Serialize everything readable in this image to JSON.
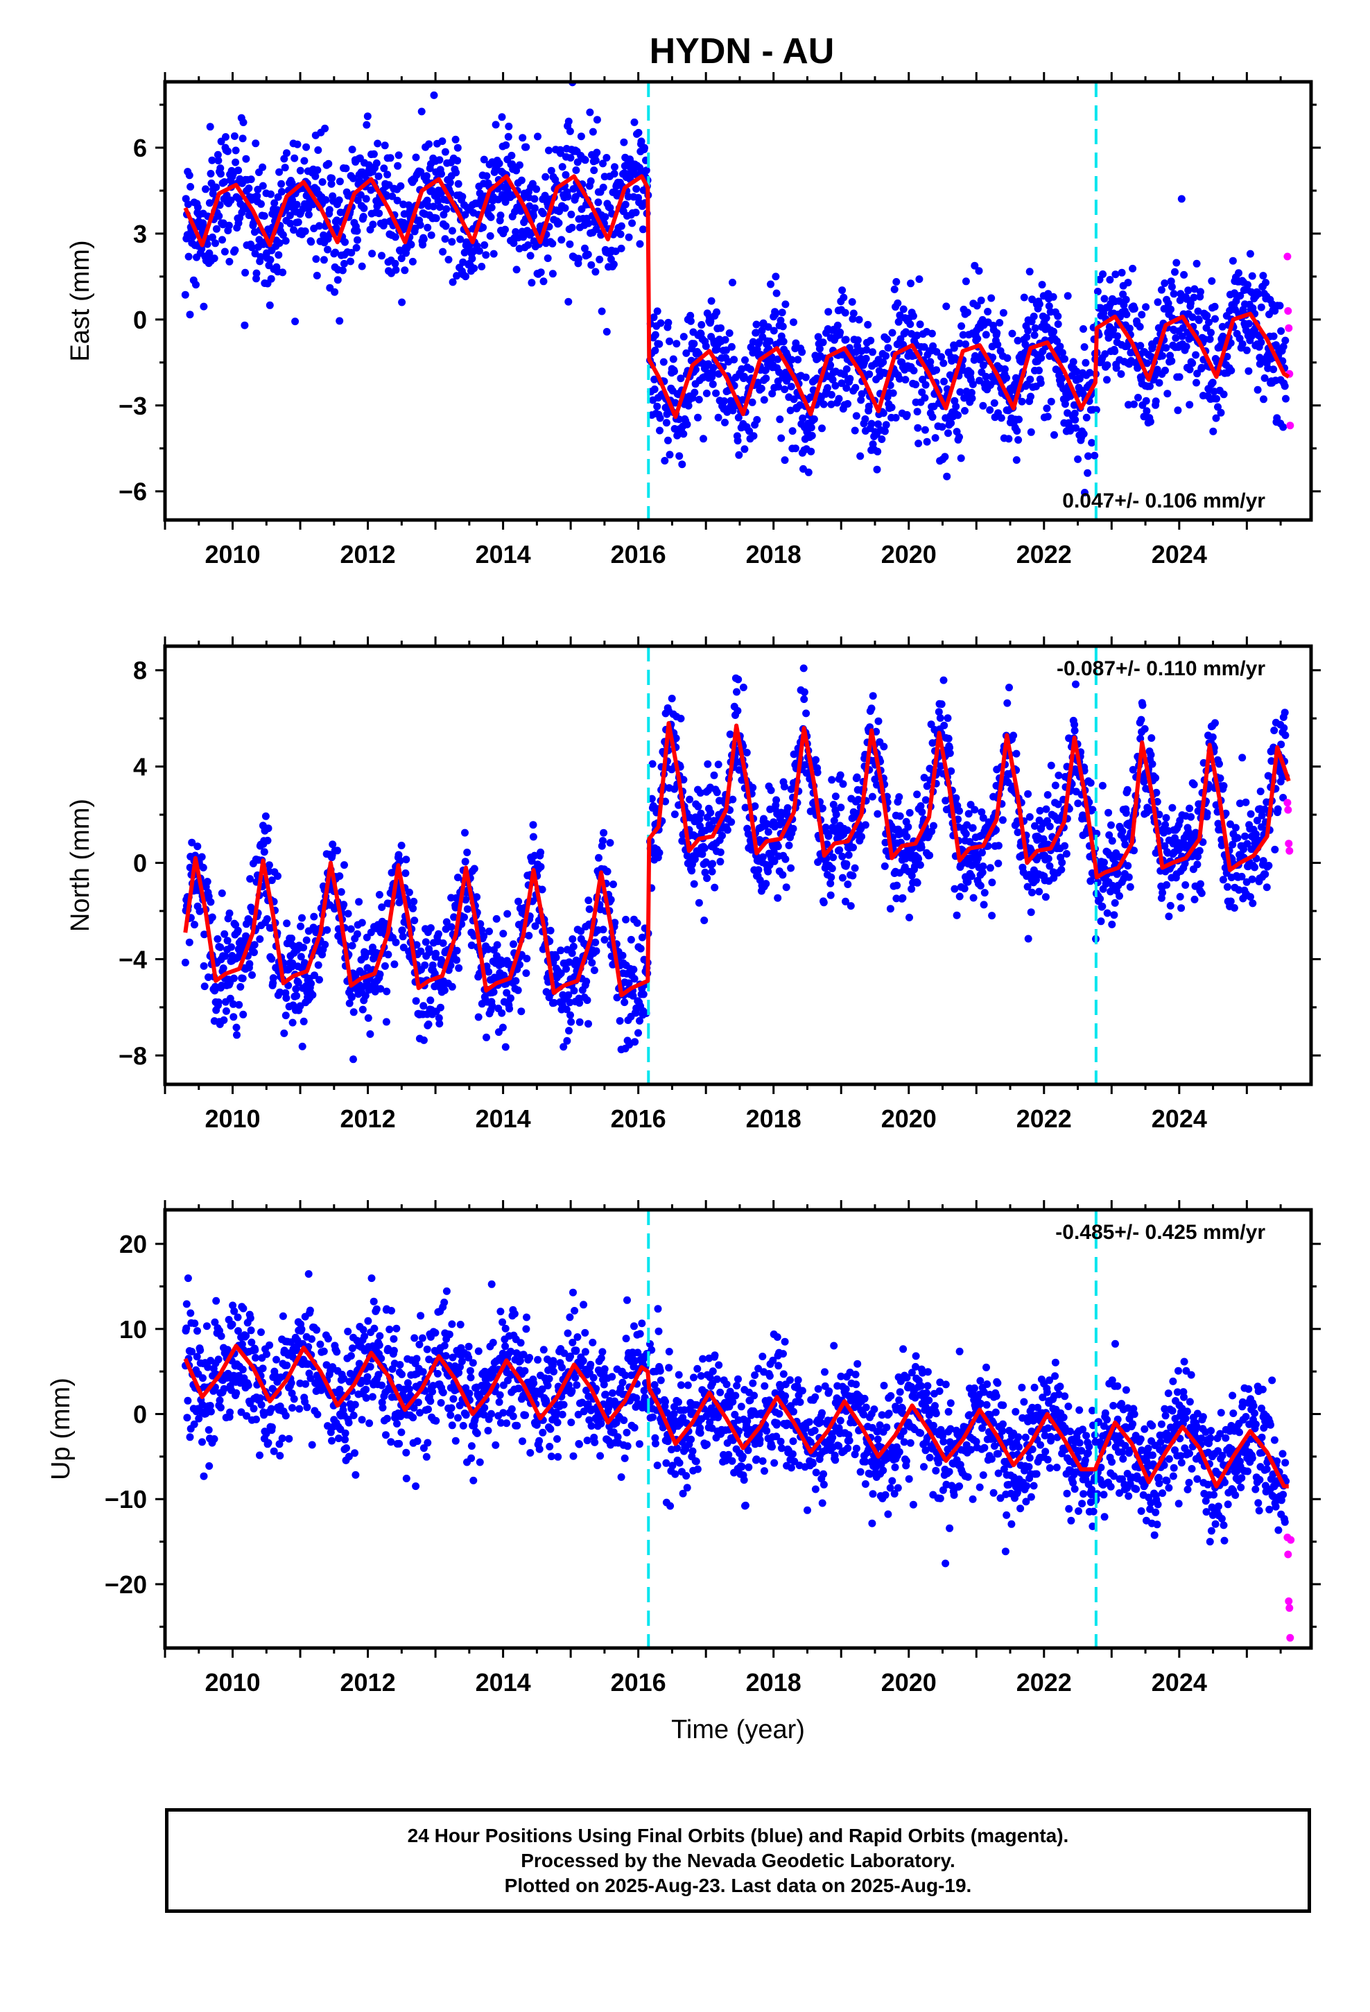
{
  "title": "HYDN - AU",
  "footer": {
    "line1": "24 Hour Positions Using Final Orbits (blue) and Rapid Orbits (magenta).",
    "line2": "Processed by the Nevada Geodetic Laboratory.",
    "line3": "Plotted on 2025-Aug-23. Last data on 2025-Aug-19."
  },
  "colors": {
    "final_orbits": "#0000ff",
    "rapid_orbits": "#ff00ff",
    "model_fit": "#ff0000",
    "equipment_change": "#00e5ee"
  },
  "chart_data": [
    {
      "type": "scatter",
      "name": "east",
      "title": "",
      "ylabel": "East (mm)",
      "xlabel": "",
      "xlim": [
        2009.0,
        2025.95
      ],
      "ylim": [
        -7,
        8.3
      ],
      "xticks": [
        2010,
        2012,
        2014,
        2016,
        2018,
        2020,
        2022,
        2024
      ],
      "yticks": [
        -6,
        -3,
        0,
        3,
        6
      ],
      "rate_text": "0.047+/- 0.106 mm/yr",
      "rate_position": "bottom-right",
      "offsets": [
        2016.15,
        2022.77
      ],
      "model_fit": {
        "x": [
          2009.3,
          2009.55,
          2009.8,
          2010.05,
          2010.3,
          2010.55,
          2010.8,
          2011.05,
          2011.3,
          2011.55,
          2011.8,
          2012.05,
          2012.3,
          2012.55,
          2012.8,
          2013.05,
          2013.3,
          2013.55,
          2013.8,
          2014.05,
          2014.3,
          2014.55,
          2014.8,
          2015.05,
          2015.3,
          2015.55,
          2015.8,
          2016.05,
          2016.14,
          2016.16,
          2016.3,
          2016.55,
          2016.8,
          2017.05,
          2017.3,
          2017.55,
          2017.8,
          2018.05,
          2018.3,
          2018.55,
          2018.8,
          2019.05,
          2019.3,
          2019.55,
          2019.8,
          2020.05,
          2020.3,
          2020.55,
          2020.8,
          2021.05,
          2021.3,
          2021.55,
          2021.8,
          2022.05,
          2022.3,
          2022.55,
          2022.76,
          2022.78,
          2023.05,
          2023.3,
          2023.55,
          2023.8,
          2024.05,
          2024.3,
          2024.55,
          2024.8,
          2025.05,
          2025.3,
          2025.55,
          2025.62
        ],
        "y": [
          3.9,
          2.6,
          4.4,
          4.7,
          3.8,
          2.6,
          4.3,
          4.8,
          3.9,
          2.7,
          4.4,
          4.9,
          3.9,
          2.7,
          4.5,
          4.9,
          3.9,
          2.7,
          4.5,
          5.0,
          4.0,
          2.7,
          4.6,
          5.0,
          4.0,
          2.8,
          4.6,
          5.0,
          4.6,
          -1.4,
          -2.0,
          -3.4,
          -1.6,
          -1.1,
          -2.0,
          -3.3,
          -1.4,
          -1.0,
          -2.0,
          -3.3,
          -1.3,
          -1.0,
          -1.9,
          -3.2,
          -1.2,
          -0.9,
          -1.9,
          -3.1,
          -1.1,
          -0.9,
          -1.9,
          -3.1,
          -1.0,
          -0.8,
          -1.8,
          -3.1,
          -2.2,
          -0.3,
          0.1,
          -0.8,
          -2.1,
          -0.2,
          0.1,
          -0.8,
          -2.0,
          0.0,
          0.2,
          -0.7,
          -1.9,
          -2.0
        ]
      },
      "rapid": {
        "x": [
          2025.6,
          2025.61,
          2025.62,
          2025.63,
          2025.64
        ],
        "y": [
          2.2,
          0.3,
          -0.3,
          -1.9,
          -3.7
        ]
      }
    },
    {
      "type": "scatter",
      "name": "north",
      "title": "",
      "ylabel": "North (mm)",
      "xlabel": "",
      "xlim": [
        2009.0,
        2025.95
      ],
      "ylim": [
        -9.2,
        9.0
      ],
      "xticks": [
        2010,
        2012,
        2014,
        2016,
        2018,
        2020,
        2022,
        2024
      ],
      "yticks": [
        -8,
        -4,
        0,
        4,
        8
      ],
      "rate_text": "-0.087+/- 0.110 mm/yr",
      "rate_position": "top-right",
      "offsets": [
        2016.15,
        2022.77
      ],
      "model_fit": {
        "x": [
          2009.3,
          2009.45,
          2009.6,
          2009.75,
          2009.9,
          2010.1,
          2010.3,
          2010.45,
          2010.6,
          2010.75,
          2010.9,
          2011.1,
          2011.3,
          2011.45,
          2011.6,
          2011.75,
          2011.9,
          2012.1,
          2012.3,
          2012.45,
          2012.6,
          2012.75,
          2012.9,
          2013.1,
          2013.3,
          2013.45,
          2013.6,
          2013.75,
          2013.9,
          2014.1,
          2014.3,
          2014.45,
          2014.6,
          2014.75,
          2014.9,
          2015.1,
          2015.3,
          2015.45,
          2015.6,
          2015.75,
          2015.9,
          2016.14,
          2016.16,
          2016.3,
          2016.45,
          2016.6,
          2016.75,
          2016.9,
          2017.1,
          2017.3,
          2017.45,
          2017.6,
          2017.75,
          2017.9,
          2018.1,
          2018.3,
          2018.45,
          2018.6,
          2018.75,
          2018.9,
          2019.1,
          2019.3,
          2019.45,
          2019.6,
          2019.75,
          2019.9,
          2020.1,
          2020.3,
          2020.45,
          2020.6,
          2020.75,
          2020.9,
          2021.1,
          2021.3,
          2021.45,
          2021.6,
          2021.75,
          2021.9,
          2022.1,
          2022.3,
          2022.45,
          2022.6,
          2022.76,
          2022.78,
          2022.9,
          2023.1,
          2023.3,
          2023.45,
          2023.6,
          2023.75,
          2023.9,
          2024.1,
          2024.3,
          2024.45,
          2024.6,
          2024.75,
          2024.9,
          2025.1,
          2025.3,
          2025.45,
          2025.62
        ],
        "y": [
          -2.9,
          0.2,
          -2.0,
          -4.9,
          -4.6,
          -4.4,
          -2.9,
          0.1,
          -2.2,
          -5.0,
          -4.7,
          -4.5,
          -2.9,
          0.0,
          -2.3,
          -5.1,
          -4.8,
          -4.6,
          -2.9,
          -0.1,
          -2.4,
          -5.2,
          -4.9,
          -4.7,
          -3.0,
          -0.2,
          -2.5,
          -5.3,
          -5.0,
          -4.8,
          -3.0,
          -0.3,
          -2.6,
          -5.4,
          -5.1,
          -4.9,
          -3.1,
          -0.4,
          -2.7,
          -5.5,
          -5.2,
          -4.9,
          1.0,
          1.5,
          5.8,
          3.5,
          0.5,
          1.0,
          1.1,
          2.2,
          5.7,
          3.4,
          0.4,
          0.9,
          1.0,
          2.1,
          5.6,
          3.3,
          0.3,
          0.8,
          0.9,
          2.0,
          5.5,
          3.2,
          0.2,
          0.7,
          0.8,
          1.9,
          5.4,
          3.1,
          0.1,
          0.6,
          0.7,
          1.8,
          5.3,
          3.0,
          0.0,
          0.5,
          0.6,
          1.7,
          5.2,
          2.9,
          -0.1,
          -0.6,
          -0.4,
          -0.2,
          0.8,
          5.0,
          2.8,
          -0.2,
          0.0,
          0.2,
          1.0,
          4.9,
          2.6,
          -0.3,
          0.0,
          0.3,
          1.1,
          4.8,
          3.4
        ]
      },
      "rapid": {
        "x": [
          2025.6,
          2025.61,
          2025.62,
          2025.63
        ],
        "y": [
          2.5,
          2.2,
          0.8,
          0.5
        ]
      }
    },
    {
      "type": "scatter",
      "name": "up",
      "title": "",
      "ylabel": "Up (mm)",
      "xlabel": "Time (year)",
      "xlim": [
        2009.0,
        2025.95
      ],
      "ylim": [
        -27.5,
        24.0
      ],
      "xticks": [
        2010,
        2012,
        2014,
        2016,
        2018,
        2020,
        2022,
        2024
      ],
      "yticks": [
        -20,
        -10,
        0,
        10,
        20
      ],
      "rate_text": "-0.485+/- 0.425 mm/yr",
      "rate_position": "top-right",
      "offsets": [
        2016.15,
        2022.77
      ],
      "model_fit": {
        "x": [
          2009.3,
          2009.55,
          2009.8,
          2010.05,
          2010.3,
          2010.55,
          2010.8,
          2011.05,
          2011.3,
          2011.55,
          2011.8,
          2012.05,
          2012.3,
          2012.55,
          2012.8,
          2013.05,
          2013.3,
          2013.55,
          2013.8,
          2014.05,
          2014.3,
          2014.55,
          2014.8,
          2015.05,
          2015.3,
          2015.55,
          2015.8,
          2016.05,
          2016.14,
          2016.16,
          2016.3,
          2016.55,
          2016.8,
          2017.05,
          2017.3,
          2017.55,
          2017.8,
          2018.05,
          2018.3,
          2018.55,
          2018.8,
          2019.05,
          2019.3,
          2019.55,
          2019.8,
          2020.05,
          2020.3,
          2020.55,
          2020.8,
          2021.05,
          2021.3,
          2021.55,
          2021.8,
          2022.05,
          2022.3,
          2022.55,
          2022.76,
          2022.78,
          2023.05,
          2023.3,
          2023.55,
          2023.8,
          2024.05,
          2024.3,
          2024.55,
          2024.8,
          2025.05,
          2025.3,
          2025.55,
          2025.62
        ],
        "y": [
          6.5,
          2.0,
          4.5,
          8.0,
          5.5,
          1.5,
          4.0,
          7.8,
          5.0,
          1.0,
          3.5,
          7.2,
          4.5,
          0.5,
          3.0,
          6.8,
          4.0,
          0.0,
          2.5,
          6.3,
          3.5,
          -0.5,
          2.0,
          5.8,
          3.0,
          -1.0,
          1.5,
          5.5,
          5.0,
          3.0,
          1.0,
          -3.5,
          -1.0,
          2.5,
          -0.5,
          -4.0,
          -1.5,
          2.0,
          -1.0,
          -4.5,
          -2.0,
          1.5,
          -1.5,
          -5.0,
          -2.5,
          1.0,
          -2.0,
          -5.5,
          -3.0,
          0.5,
          -2.5,
          -6.0,
          -3.5,
          0.0,
          -3.0,
          -6.5,
          -6.5,
          -6.0,
          -1.0,
          -3.5,
          -8.0,
          -4.5,
          -1.5,
          -4.0,
          -8.5,
          -5.0,
          -2.0,
          -4.5,
          -8.5,
          -8.5
        ]
      },
      "rapid": {
        "x": [
          2025.6,
          2025.61,
          2025.62,
          2025.63,
          2025.64,
          2025.65
        ],
        "y": [
          -14.5,
          -16.5,
          -22.0,
          -22.8,
          -26.3,
          -14.8
        ]
      }
    }
  ]
}
